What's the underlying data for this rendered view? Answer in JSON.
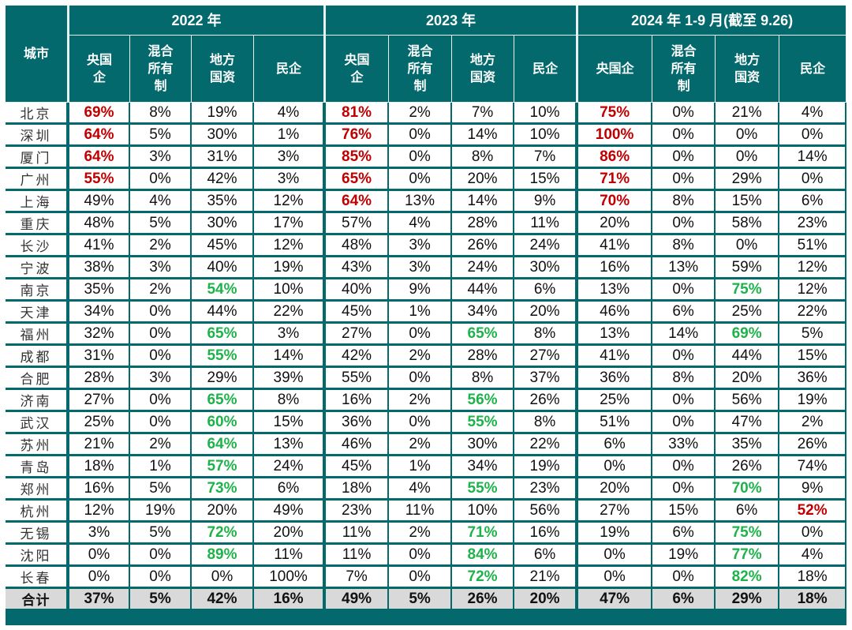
{
  "colors": {
    "header_bg": "#03696d",
    "red_highlight": "#c00000",
    "green_highlight": "#1eb24b",
    "total_bg": "#d9d9d9"
  },
  "header": {
    "city": "城市",
    "groups": [
      "2022 年",
      "2023 年",
      "2024 年 1-9 月(截至 9.26)"
    ],
    "subcols": [
      [
        "央国\n企",
        "混合\n所有\n制",
        "地方\n国资",
        "民企"
      ],
      [
        "央国\n企",
        "混合\n所有\n制",
        "地方\n国资",
        "民企"
      ],
      [
        "央国企",
        "混合\n所有\n制",
        "地方\n国资",
        "民企"
      ]
    ]
  },
  "rows": [
    {
      "city": "北京",
      "cells": [
        {
          "v": "69%",
          "h": "r"
        },
        {
          "v": "8%"
        },
        {
          "v": "19%"
        },
        {
          "v": "4%"
        },
        {
          "v": "81%",
          "h": "r"
        },
        {
          "v": "2%"
        },
        {
          "v": "7%"
        },
        {
          "v": "10%"
        },
        {
          "v": "75%",
          "h": "r"
        },
        {
          "v": "0%"
        },
        {
          "v": "21%"
        },
        {
          "v": "4%"
        }
      ]
    },
    {
      "city": "深圳",
      "cells": [
        {
          "v": "64%",
          "h": "r"
        },
        {
          "v": "5%"
        },
        {
          "v": "30%"
        },
        {
          "v": "1%"
        },
        {
          "v": "76%",
          "h": "r"
        },
        {
          "v": "0%"
        },
        {
          "v": "14%"
        },
        {
          "v": "10%"
        },
        {
          "v": "100%",
          "h": "r"
        },
        {
          "v": "0%"
        },
        {
          "v": "0%"
        },
        {
          "v": "0%"
        }
      ]
    },
    {
      "city": "厦门",
      "cells": [
        {
          "v": "64%",
          "h": "r"
        },
        {
          "v": "3%"
        },
        {
          "v": "31%"
        },
        {
          "v": "3%"
        },
        {
          "v": "85%",
          "h": "r"
        },
        {
          "v": "0%"
        },
        {
          "v": "8%"
        },
        {
          "v": "7%"
        },
        {
          "v": "86%",
          "h": "r"
        },
        {
          "v": "0%"
        },
        {
          "v": "0%"
        },
        {
          "v": "14%"
        }
      ]
    },
    {
      "city": "广州",
      "cells": [
        {
          "v": "55%",
          "h": "r"
        },
        {
          "v": "0%"
        },
        {
          "v": "42%"
        },
        {
          "v": "3%"
        },
        {
          "v": "65%",
          "h": "r"
        },
        {
          "v": "0%"
        },
        {
          "v": "20%"
        },
        {
          "v": "15%"
        },
        {
          "v": "71%",
          "h": "r"
        },
        {
          "v": "0%"
        },
        {
          "v": "29%"
        },
        {
          "v": "0%"
        }
      ]
    },
    {
      "city": "上海",
      "cells": [
        {
          "v": "49%"
        },
        {
          "v": "4%"
        },
        {
          "v": "35%"
        },
        {
          "v": "12%"
        },
        {
          "v": "64%",
          "h": "r"
        },
        {
          "v": "13%"
        },
        {
          "v": "14%"
        },
        {
          "v": "9%"
        },
        {
          "v": "70%",
          "h": "r"
        },
        {
          "v": "8%"
        },
        {
          "v": "15%"
        },
        {
          "v": "6%"
        }
      ]
    },
    {
      "city": "重庆",
      "cells": [
        {
          "v": "48%"
        },
        {
          "v": "5%"
        },
        {
          "v": "30%"
        },
        {
          "v": "17%"
        },
        {
          "v": "57%"
        },
        {
          "v": "4%"
        },
        {
          "v": "28%"
        },
        {
          "v": "11%"
        },
        {
          "v": "20%"
        },
        {
          "v": "0%"
        },
        {
          "v": "58%"
        },
        {
          "v": "23%"
        }
      ]
    },
    {
      "city": "长沙",
      "cells": [
        {
          "v": "41%"
        },
        {
          "v": "2%"
        },
        {
          "v": "45%"
        },
        {
          "v": "12%"
        },
        {
          "v": "48%"
        },
        {
          "v": "3%"
        },
        {
          "v": "26%"
        },
        {
          "v": "24%"
        },
        {
          "v": "41%"
        },
        {
          "v": "8%"
        },
        {
          "v": "0%"
        },
        {
          "v": "51%"
        }
      ]
    },
    {
      "city": "宁波",
      "cells": [
        {
          "v": "38%"
        },
        {
          "v": "3%"
        },
        {
          "v": "40%"
        },
        {
          "v": "19%"
        },
        {
          "v": "43%"
        },
        {
          "v": "3%"
        },
        {
          "v": "24%"
        },
        {
          "v": "30%"
        },
        {
          "v": "16%"
        },
        {
          "v": "13%"
        },
        {
          "v": "59%"
        },
        {
          "v": "12%"
        }
      ]
    },
    {
      "city": "南京",
      "cells": [
        {
          "v": "35%"
        },
        {
          "v": "2%"
        },
        {
          "v": "54%",
          "h": "g"
        },
        {
          "v": "10%"
        },
        {
          "v": "40%"
        },
        {
          "v": "9%"
        },
        {
          "v": "44%"
        },
        {
          "v": "6%"
        },
        {
          "v": "13%"
        },
        {
          "v": "0%"
        },
        {
          "v": "75%",
          "h": "g"
        },
        {
          "v": "12%"
        }
      ]
    },
    {
      "city": "天津",
      "cells": [
        {
          "v": "34%"
        },
        {
          "v": "0%"
        },
        {
          "v": "44%"
        },
        {
          "v": "22%"
        },
        {
          "v": "45%"
        },
        {
          "v": "1%"
        },
        {
          "v": "34%"
        },
        {
          "v": "20%"
        },
        {
          "v": "46%"
        },
        {
          "v": "6%"
        },
        {
          "v": "25%"
        },
        {
          "v": "22%"
        }
      ]
    },
    {
      "city": "福州",
      "cells": [
        {
          "v": "32%"
        },
        {
          "v": "0%"
        },
        {
          "v": "65%",
          "h": "g"
        },
        {
          "v": "3%"
        },
        {
          "v": "27%"
        },
        {
          "v": "0%"
        },
        {
          "v": "65%",
          "h": "g"
        },
        {
          "v": "8%"
        },
        {
          "v": "13%"
        },
        {
          "v": "14%"
        },
        {
          "v": "69%",
          "h": "g"
        },
        {
          "v": "5%"
        }
      ]
    },
    {
      "city": "成都",
      "cells": [
        {
          "v": "31%"
        },
        {
          "v": "0%"
        },
        {
          "v": "55%",
          "h": "g"
        },
        {
          "v": "14%"
        },
        {
          "v": "42%"
        },
        {
          "v": "2%"
        },
        {
          "v": "28%"
        },
        {
          "v": "27%"
        },
        {
          "v": "41%"
        },
        {
          "v": "0%"
        },
        {
          "v": "44%"
        },
        {
          "v": "15%"
        }
      ]
    },
    {
      "city": "合肥",
      "cells": [
        {
          "v": "28%"
        },
        {
          "v": "3%"
        },
        {
          "v": "29%"
        },
        {
          "v": "39%"
        },
        {
          "v": "55%"
        },
        {
          "v": "0%"
        },
        {
          "v": "8%"
        },
        {
          "v": "37%"
        },
        {
          "v": "36%"
        },
        {
          "v": "8%"
        },
        {
          "v": "20%"
        },
        {
          "v": "36%"
        }
      ]
    },
    {
      "city": "济南",
      "cells": [
        {
          "v": "27%"
        },
        {
          "v": "0%"
        },
        {
          "v": "65%",
          "h": "g"
        },
        {
          "v": "8%"
        },
        {
          "v": "16%"
        },
        {
          "v": "2%"
        },
        {
          "v": "56%",
          "h": "g"
        },
        {
          "v": "26%"
        },
        {
          "v": "25%"
        },
        {
          "v": "0%"
        },
        {
          "v": "56%"
        },
        {
          "v": "19%"
        }
      ]
    },
    {
      "city": "武汉",
      "cells": [
        {
          "v": "25%"
        },
        {
          "v": "0%"
        },
        {
          "v": "60%",
          "h": "g"
        },
        {
          "v": "15%"
        },
        {
          "v": "36%"
        },
        {
          "v": "0%"
        },
        {
          "v": "55%",
          "h": "g"
        },
        {
          "v": "8%"
        },
        {
          "v": "51%"
        },
        {
          "v": "0%"
        },
        {
          "v": "47%"
        },
        {
          "v": "2%"
        }
      ]
    },
    {
      "city": "苏州",
      "cells": [
        {
          "v": "21%"
        },
        {
          "v": "2%"
        },
        {
          "v": "64%",
          "h": "g"
        },
        {
          "v": "13%"
        },
        {
          "v": "46%"
        },
        {
          "v": "2%"
        },
        {
          "v": "30%"
        },
        {
          "v": "22%"
        },
        {
          "v": "6%"
        },
        {
          "v": "33%"
        },
        {
          "v": "35%"
        },
        {
          "v": "26%"
        }
      ]
    },
    {
      "city": "青岛",
      "cells": [
        {
          "v": "18%"
        },
        {
          "v": "1%"
        },
        {
          "v": "57%",
          "h": "g"
        },
        {
          "v": "24%"
        },
        {
          "v": "45%"
        },
        {
          "v": "1%"
        },
        {
          "v": "34%"
        },
        {
          "v": "19%"
        },
        {
          "v": "0%"
        },
        {
          "v": "0%"
        },
        {
          "v": "26%"
        },
        {
          "v": "74%"
        }
      ]
    },
    {
      "city": "郑州",
      "cells": [
        {
          "v": "16%"
        },
        {
          "v": "5%"
        },
        {
          "v": "73%",
          "h": "g"
        },
        {
          "v": "6%"
        },
        {
          "v": "18%"
        },
        {
          "v": "4%"
        },
        {
          "v": "55%",
          "h": "g"
        },
        {
          "v": "23%"
        },
        {
          "v": "20%"
        },
        {
          "v": "0%"
        },
        {
          "v": "70%",
          "h": "g"
        },
        {
          "v": "9%"
        }
      ]
    },
    {
      "city": "杭州",
      "cells": [
        {
          "v": "12%"
        },
        {
          "v": "19%"
        },
        {
          "v": "20%"
        },
        {
          "v": "49%"
        },
        {
          "v": "23%"
        },
        {
          "v": "11%"
        },
        {
          "v": "10%"
        },
        {
          "v": "56%"
        },
        {
          "v": "27%"
        },
        {
          "v": "15%"
        },
        {
          "v": "6%"
        },
        {
          "v": "52%",
          "h": "r"
        }
      ]
    },
    {
      "city": "无锡",
      "cells": [
        {
          "v": "3%"
        },
        {
          "v": "5%"
        },
        {
          "v": "72%",
          "h": "g"
        },
        {
          "v": "20%"
        },
        {
          "v": "11%"
        },
        {
          "v": "2%"
        },
        {
          "v": "71%",
          "h": "g"
        },
        {
          "v": "16%"
        },
        {
          "v": "19%"
        },
        {
          "v": "6%"
        },
        {
          "v": "75%",
          "h": "g"
        },
        {
          "v": "0%"
        }
      ]
    },
    {
      "city": "沈阳",
      "cells": [
        {
          "v": "0%"
        },
        {
          "v": "0%"
        },
        {
          "v": "89%",
          "h": "g"
        },
        {
          "v": "11%"
        },
        {
          "v": "11%"
        },
        {
          "v": "0%"
        },
        {
          "v": "84%",
          "h": "g"
        },
        {
          "v": "6%"
        },
        {
          "v": "0%"
        },
        {
          "v": "19%"
        },
        {
          "v": "77%",
          "h": "g"
        },
        {
          "v": "4%"
        }
      ]
    },
    {
      "city": "长春",
      "cells": [
        {
          "v": "0%"
        },
        {
          "v": "0%"
        },
        {
          "v": "0%"
        },
        {
          "v": "100%"
        },
        {
          "v": "7%"
        },
        {
          "v": "0%"
        },
        {
          "v": "72%",
          "h": "g"
        },
        {
          "v": "21%"
        },
        {
          "v": "0%"
        },
        {
          "v": "0%"
        },
        {
          "v": "82%",
          "h": "g"
        },
        {
          "v": "18%"
        }
      ]
    }
  ],
  "total": {
    "city": "合计",
    "cells": [
      {
        "v": "37%"
      },
      {
        "v": "5%"
      },
      {
        "v": "42%"
      },
      {
        "v": "16%"
      },
      {
        "v": "49%"
      },
      {
        "v": "5%"
      },
      {
        "v": "26%"
      },
      {
        "v": "20%"
      },
      {
        "v": "47%"
      },
      {
        "v": "6%"
      },
      {
        "v": "29%"
      },
      {
        "v": "18%"
      }
    ]
  }
}
